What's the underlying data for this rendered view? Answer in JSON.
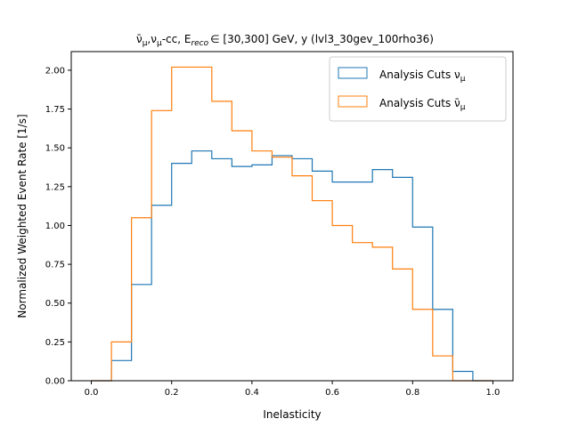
{
  "chart_data": {
    "type": "step",
    "title_parts": {
      "series_a": "ν̄",
      "sub_mu_1": "μ",
      "sep1": ",",
      "series_b": "ν",
      "sub_mu_2": "μ",
      "suffix": "-cc, E",
      "sub_reco": "reco",
      "range": "∈ [30,300] GeV, y (lvl3_30gev_100rho36)"
    },
    "xlabel": "Inelasticity",
    "ylabel": "Normalized Weighted Event Rate [1/s]",
    "xlim": [
      -0.05,
      1.05
    ],
    "ylim": [
      0.0,
      2.12
    ],
    "xticks": [
      0.0,
      0.2,
      0.4,
      0.6,
      0.8,
      1.0
    ],
    "xtick_labels": [
      "0.0",
      "0.2",
      "0.4",
      "0.6",
      "0.8",
      "1.0"
    ],
    "yticks": [
      0.0,
      0.25,
      0.5,
      0.75,
      1.0,
      1.25,
      1.5,
      1.75,
      2.0
    ],
    "ytick_labels": [
      "0.00",
      "0.25",
      "0.50",
      "0.75",
      "1.00",
      "1.25",
      "1.50",
      "1.75",
      "2.00"
    ],
    "bin_edges": [
      0.0,
      0.05,
      0.1,
      0.15,
      0.2,
      0.25,
      0.3,
      0.35,
      0.4,
      0.45,
      0.5,
      0.55,
      0.6,
      0.65,
      0.7,
      0.75,
      0.8,
      0.85,
      0.9,
      0.95,
      1.0
    ],
    "legend_position": "top-right",
    "series": [
      {
        "name_prefix": "Analysis Cuts ",
        "name_symbol": "ν",
        "name_sub": "μ",
        "color": "#1f77b4",
        "values": [
          0.0,
          0.13,
          0.62,
          1.13,
          1.4,
          1.48,
          1.43,
          1.38,
          1.39,
          1.45,
          1.43,
          1.35,
          1.28,
          1.28,
          1.36,
          1.31,
          0.99,
          0.46,
          0.06,
          0.0
        ]
      },
      {
        "name_prefix": "Analysis Cuts ",
        "name_symbol": "ν̄",
        "name_sub": "μ",
        "color": "#ff7f0e",
        "values": [
          0.0,
          0.25,
          1.05,
          1.74,
          2.02,
          2.02,
          1.8,
          1.61,
          1.48,
          1.44,
          1.32,
          1.16,
          1.0,
          0.89,
          0.86,
          0.72,
          0.46,
          0.16,
          0.0,
          0.0
        ]
      }
    ]
  }
}
